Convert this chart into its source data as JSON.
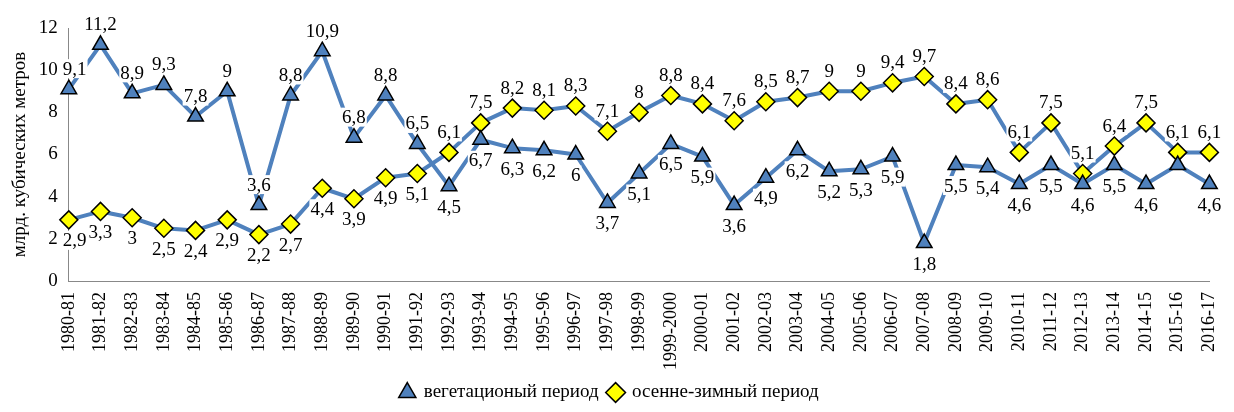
{
  "chart_data": {
    "type": "line",
    "ylabel": "млрд. кубических метров",
    "categories": [
      "1980-81",
      "1981-82",
      "1982-83",
      "1983-84",
      "1984-85",
      "1985-86",
      "1986-87",
      "1987-88",
      "1988-89",
      "1989-90",
      "1990-91",
      "1991-92",
      "1992-93",
      "1993-94",
      "1994-95",
      "1995-96",
      "1996-97",
      "1997-98",
      "1998-99",
      "1999-2000",
      "2000-01",
      "2001-02",
      "2002-03",
      "2003-04",
      "2004-05",
      "2005-06",
      "2006-07",
      "2007-08",
      "2008-09",
      "2009-10",
      "2010-11",
      "2011-12",
      "2012-13",
      "2013-14",
      "2014-15",
      "2015-16",
      "2016-17"
    ],
    "series": [
      {
        "name": "вегетационый период",
        "color": "#4f81bd",
        "marker": "triangle",
        "values": [
          9.1,
          11.2,
          8.9,
          9.3,
          7.8,
          9,
          3.6,
          8.8,
          10.9,
          6.8,
          8.8,
          6.5,
          4.5,
          6.7,
          6.3,
          6.2,
          6,
          3.7,
          5.1,
          6.5,
          5.9,
          3.6,
          4.9,
          6.2,
          5.2,
          5.3,
          5.9,
          1.8,
          5.5,
          5.4,
          4.6,
          5.5,
          4.6,
          5.5,
          4.6,
          5.5,
          4.6
        ],
        "value_labels": [
          "9,1",
          "11,2",
          "8,9",
          "9,3",
          "7,8",
          "9",
          "3,6",
          "8,8",
          "10,9",
          "6,8",
          "8,8",
          "6,5",
          "4,5",
          "6,7",
          "6,3",
          "6,2",
          "6",
          "3,7",
          "5,1",
          "6,5",
          "5,9",
          "3,6",
          "4,9",
          "6,2",
          "5,2",
          "5,3",
          "5,9",
          "1,8",
          "5,5",
          "5,4",
          "4,6",
          "5,5",
          "4,6",
          "5,5",
          "4,6",
          null,
          "4,6"
        ]
      },
      {
        "name": "осенне-зимный период",
        "color": "#ffff00",
        "marker": "diamond",
        "values": [
          2.9,
          3.3,
          3,
          2.5,
          2.4,
          2.9,
          2.2,
          2.7,
          4.4,
          3.9,
          4.9,
          5.1,
          6.1,
          7.5,
          8.2,
          8.1,
          8.3,
          7.1,
          8,
          8.8,
          8.4,
          7.6,
          8.5,
          8.7,
          9,
          9,
          9.4,
          9.7,
          8.4,
          8.6,
          6.1,
          7.5,
          5.1,
          6.4,
          7.5,
          6.1,
          6.1
        ],
        "value_labels": [
          "2,9",
          "3,3",
          "3",
          "2,5",
          "2,4",
          "2,9",
          "2,2",
          "2,7",
          "4,4",
          "3,9",
          "4,9",
          "5,1",
          "6,1",
          "7,5",
          "8,2",
          "8,1",
          "8,3",
          "7,1",
          "8",
          "8,8",
          "8,4",
          "7,6",
          "8,5",
          "8,7",
          "9",
          "9",
          "9,4",
          "9,7",
          "8,4",
          "8,6",
          "6,1",
          "7,5",
          "5,1",
          "6,4",
          "7,5",
          "6,1",
          "6,1"
        ]
      }
    ],
    "ylim": [
      0,
      12
    ],
    "yticks": [
      0,
      2,
      4,
      6,
      8,
      10,
      12
    ],
    "grid": false,
    "legend": "bottom",
    "line_style": "solid"
  }
}
